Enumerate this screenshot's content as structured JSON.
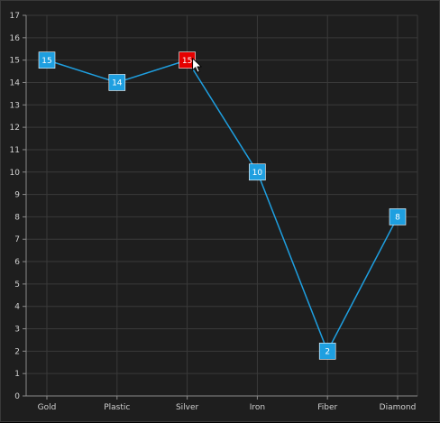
{
  "chart_data": {
    "type": "line",
    "title": "",
    "xlabel": "",
    "ylabel": "",
    "categories": [
      "Gold",
      "Plastic",
      "Silver",
      "Iron",
      "Fiber",
      "Diamond"
    ],
    "series": [
      {
        "values": [
          15,
          14,
          15,
          10,
          2,
          8
        ]
      }
    ],
    "ylim": [
      0,
      17
    ],
    "y_ticks": [
      0,
      1,
      2,
      3,
      4,
      5,
      6,
      7,
      8,
      9,
      10,
      11,
      12,
      13,
      14,
      15,
      16,
      17
    ],
    "grid": true,
    "legend": "none",
    "highlighted_index": 2,
    "colors": {
      "background": "#1e1e1e",
      "grid": "#3a3a3a",
      "axis": "#8a8a8a",
      "line": "#1e9fe0",
      "marker": "#1e9fe0",
      "marker_highlight": "#e60000",
      "tick_text": "#d0d0d0",
      "label_text": "#ffffff"
    }
  },
  "cursor": {
    "icon": "mouse-pointer-icon"
  }
}
